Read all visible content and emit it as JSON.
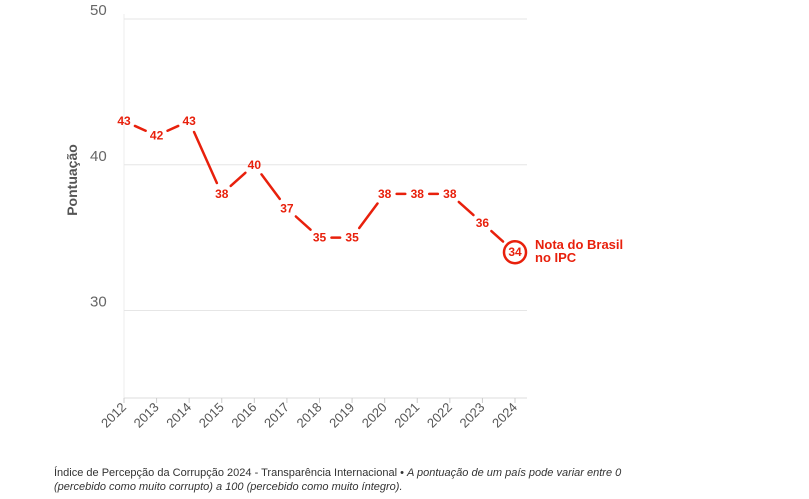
{
  "chart_data": {
    "type": "line",
    "x": [
      "2012",
      "2013",
      "2014",
      "2015",
      "2016",
      "2017",
      "2018",
      "2019",
      "2020",
      "2021",
      "2022",
      "2023",
      "2024"
    ],
    "values": [
      43,
      42,
      43,
      38,
      40,
      37,
      35,
      35,
      38,
      38,
      38,
      36,
      34
    ],
    "ylabel": "Pontuação",
    "yticks": [
      30,
      40,
      50
    ],
    "ylim": [
      24,
      50
    ],
    "grid": true,
    "color": "#e8200c",
    "callout": [
      "Nota do Brasil",
      "no IPC"
    ]
  },
  "footer": {
    "source": "Índice de Percepção da Corrupção 2024 - Transparência Internacional •",
    "note": "A pontuação de um país pode variar entre 0 (percebido como muito corrupto) a 100 (percebido como muito íntegro)."
  }
}
